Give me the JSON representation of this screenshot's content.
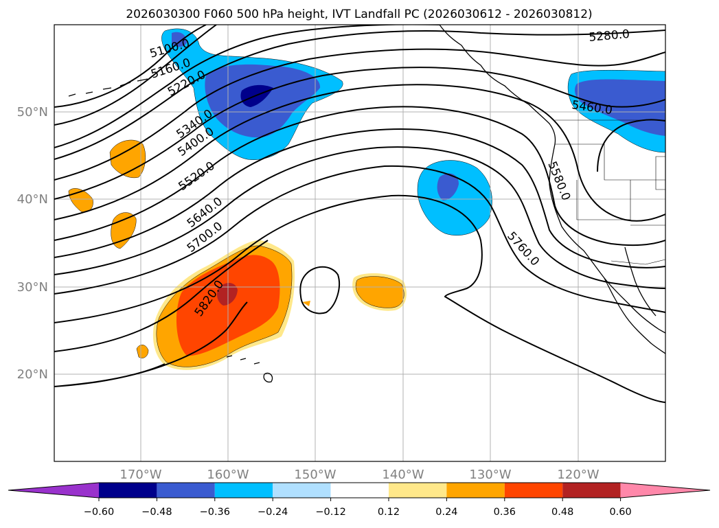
{
  "title": "2026030300 F060 500 hPa height, IVT Landfall PC (2026030612 - 2026030812)",
  "map": {
    "lon_range": [
      180,
      110
    ],
    "lat_range": [
      10,
      60
    ],
    "lon_ticks": [
      "170°W",
      "160°W",
      "150°W",
      "140°W",
      "130°W",
      "120°W"
    ],
    "lon_tick_values": [
      170,
      160,
      150,
      140,
      130,
      120
    ],
    "lat_ticks": [
      "20°N",
      "30°N",
      "40°N",
      "50°N"
    ],
    "lat_tick_values": [
      20,
      30,
      40,
      50
    ],
    "grid": true,
    "contour_labels": [
      "5100.0",
      "5160.0",
      "5220.0",
      "5280.0",
      "5340.0",
      "5400.0",
      "5460.0",
      "5520.0",
      "5580.0",
      "5640.0",
      "5700.0",
      "5760.0",
      "5820.0"
    ],
    "colors": {
      "neg_060": "#00008b",
      "neg_048": "#3a5bd0",
      "neg_036": "#00bfff",
      "pos_024": "#ffa500",
      "pos_036": "#ff4500",
      "pos_048": "#b22222",
      "pos_012": "#ffe88a"
    }
  },
  "colorbar": {
    "ticks": [
      "−0.60",
      "−0.48",
      "−0.36",
      "−0.24",
      "−0.12",
      "0.12",
      "0.24",
      "0.36",
      "0.48",
      "0.60"
    ],
    "colors": [
      "#9932cc",
      "#00008b",
      "#3a5bd0",
      "#00bfff",
      "#b0e0ff",
      "#ffffff",
      "#ffe88a",
      "#ffa500",
      "#ff4500",
      "#b22222",
      "#ff88aa"
    ]
  }
}
